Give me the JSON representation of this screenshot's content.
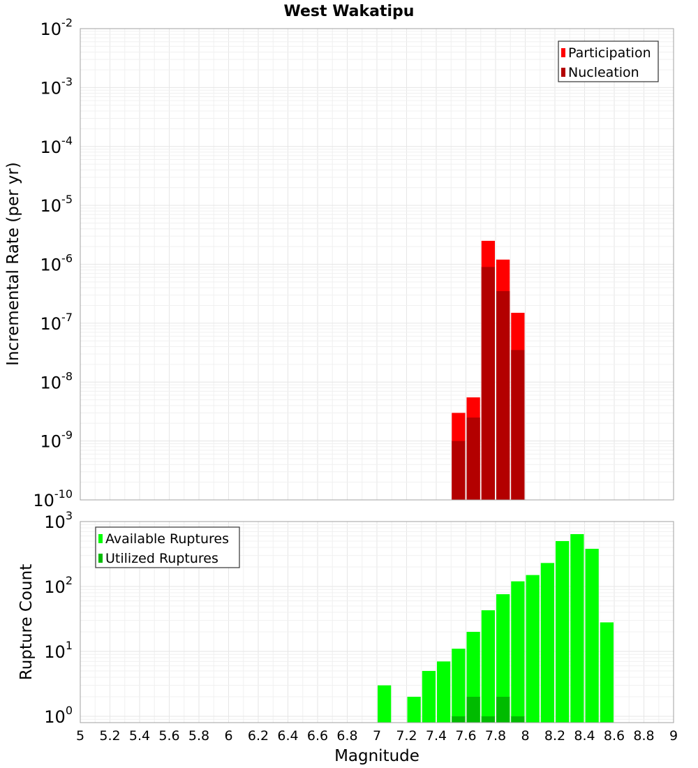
{
  "chart_data": [
    {
      "type": "bar",
      "title": "West Wakatipu",
      "xlabel": "",
      "ylabel": "Incremental Rate (per yr)",
      "yscale": "log",
      "ylim": [
        1e-10,
        0.01
      ],
      "xlim": [
        5,
        9
      ],
      "grid": true,
      "bar_width": 0.1,
      "legend_placement": "top-right",
      "series": [
        {
          "name": "Participation",
          "color": "#ff0000",
          "x": [
            7.55,
            7.65,
            7.75,
            7.85,
            7.95
          ],
          "values": [
            3e-09,
            5.5e-09,
            2.5e-06,
            1.2e-06,
            1.5e-07
          ]
        },
        {
          "name": "Nucleation",
          "color": "#b30000",
          "x": [
            7.55,
            7.65,
            7.75,
            7.85,
            7.95
          ],
          "values": [
            1e-09,
            2.5e-09,
            9e-07,
            3.5e-07,
            3.5e-08
          ]
        }
      ],
      "yticks": [
        {
          "base": "10",
          "exp": "-2",
          "value": 0.01
        },
        {
          "base": "10",
          "exp": "-3",
          "value": 0.001
        },
        {
          "base": "10",
          "exp": "-4",
          "value": 0.0001
        },
        {
          "base": "10",
          "exp": "-5",
          "value": 1e-05
        },
        {
          "base": "10",
          "exp": "-6",
          "value": 1e-06
        },
        {
          "base": "10",
          "exp": "-7",
          "value": 1e-07
        },
        {
          "base": "10",
          "exp": "-8",
          "value": 1e-08
        },
        {
          "base": "10",
          "exp": "-9",
          "value": 1e-09
        },
        {
          "base": "10",
          "exp": "-10",
          "value": 1e-10
        }
      ]
    },
    {
      "type": "bar",
      "title": "",
      "xlabel": "Magnitude",
      "ylabel": "Rupture Count",
      "yscale": "log",
      "ylim": [
        0.8,
        1000
      ],
      "xlim": [
        5,
        9
      ],
      "grid": true,
      "bar_width": 0.1,
      "legend_placement": "top-left",
      "series": [
        {
          "name": "Available Ruptures",
          "color": "#00ff00",
          "x": [
            7.05,
            7.25,
            7.35,
            7.45,
            7.55,
            7.65,
            7.75,
            7.85,
            7.95,
            8.05,
            8.15,
            8.25,
            8.35,
            8.45,
            8.55
          ],
          "values": [
            3,
            2,
            5,
            7,
            11,
            20,
            43,
            76,
            120,
            150,
            230,
            500,
            640,
            380,
            28
          ]
        },
        {
          "name": "Utilized Ruptures",
          "color": "#00bb00",
          "x": [
            7.55,
            7.65,
            7.75,
            7.85,
            7.95
          ],
          "values": [
            1,
            2,
            1,
            2,
            1
          ]
        }
      ],
      "yticks": [
        {
          "base": "10",
          "exp": "3",
          "value": 1000
        },
        {
          "base": "10",
          "exp": "2",
          "value": 100
        },
        {
          "base": "10",
          "exp": "1",
          "value": 10
        },
        {
          "base": "10",
          "exp": "0",
          "value": 1
        }
      ],
      "xticks": [
        "5",
        "5.2",
        "5.4",
        "5.6",
        "5.8",
        "6",
        "6.2",
        "6.4",
        "6.6",
        "6.8",
        "7",
        "7.2",
        "7.4",
        "7.6",
        "7.8",
        "8",
        "8.2",
        "8.4",
        "8.6",
        "8.8",
        "9"
      ]
    }
  ]
}
